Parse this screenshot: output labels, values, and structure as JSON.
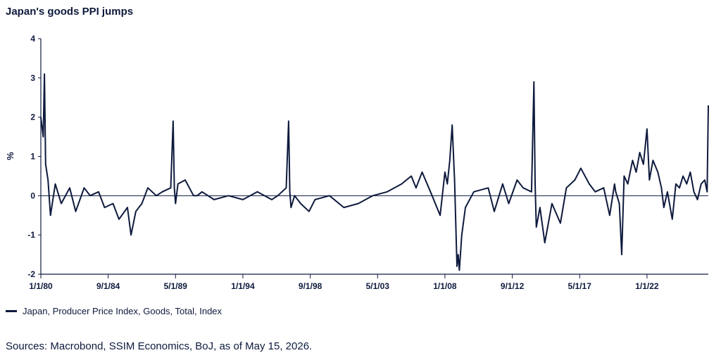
{
  "title": "Japan's goods PPI jumps",
  "legend_label": "Japan, Producer Price Index, Goods, Total, Index",
  "source": "Sources: Macrobond, SSIM Economics, BoJ, as of May 15, 2026.",
  "colors": {
    "line": "#0e1a3d",
    "axis": "#0e1a3d"
  },
  "chart_data": {
    "type": "line",
    "title": "Japan's goods PPI jumps",
    "ylabel": "%",
    "xlabel": "",
    "ylim": [
      -2,
      4
    ],
    "xlim": [
      "1980-01",
      "2026-04"
    ],
    "yticks": [
      "-2",
      "-1",
      "0",
      "1",
      "2",
      "3",
      "4"
    ],
    "xtick_labels": [
      "1/1/80",
      "9/1/84",
      "5/1/89",
      "1/1/94",
      "9/1/98",
      "5/1/03",
      "1/1/08",
      "9/1/12",
      "5/1/17",
      "1/1/22"
    ],
    "xtick_dates": [
      "1980-01",
      "1984-09",
      "1989-05",
      "1994-01",
      "1998-09",
      "2003-05",
      "2008-01",
      "2012-09",
      "2017-05",
      "2022-01"
    ],
    "grid": false,
    "legend_position": "bottom-left",
    "series": [
      {
        "name": "Japan, Producer Price Index, Goods, Total, Index",
        "x": [
          "1980-01",
          "1980-03",
          "1980-04",
          "1980-05",
          "1980-07",
          "1980-09",
          "1981-01",
          "1981-06",
          "1982-01",
          "1982-06",
          "1983-01",
          "1983-06",
          "1984-01",
          "1984-06",
          "1985-01",
          "1985-06",
          "1986-01",
          "1986-04",
          "1986-08",
          "1987-01",
          "1987-06",
          "1988-01",
          "1988-06",
          "1989-01",
          "1989-03",
          "1989-04",
          "1989-05",
          "1989-07",
          "1990-01",
          "1990-08",
          "1990-11",
          "1991-03",
          "1992-01",
          "1993-01",
          "1994-01",
          "1995-01",
          "1996-01",
          "1996-06",
          "1997-01",
          "1997-03",
          "1997-04",
          "1997-05",
          "1997-08",
          "1998-01",
          "1998-08",
          "1999-01",
          "2000-01",
          "2001-01",
          "2002-01",
          "2003-01",
          "2004-01",
          "2005-01",
          "2005-09",
          "2006-01",
          "2006-06",
          "2007-01",
          "2007-09",
          "2008-01",
          "2008-03",
          "2008-05",
          "2008-07",
          "2008-09",
          "2008-11",
          "2008-12",
          "2009-01",
          "2009-03",
          "2009-06",
          "2010-01",
          "2011-01",
          "2011-06",
          "2012-01",
          "2012-06",
          "2013-01",
          "2013-06",
          "2014-01",
          "2014-03",
          "2014-04",
          "2014-05",
          "2014-08",
          "2014-12",
          "2015-06",
          "2016-01",
          "2016-06",
          "2017-01",
          "2017-06",
          "2018-01",
          "2018-06",
          "2019-01",
          "2019-06",
          "2019-10",
          "2019-11",
          "2020-02",
          "2020-04",
          "2020-06",
          "2020-09",
          "2021-01",
          "2021-04",
          "2021-07",
          "2021-10",
          "2022-01",
          "2022-03",
          "2022-06",
          "2022-10",
          "2023-01",
          "2023-03",
          "2023-06",
          "2023-10",
          "2024-01",
          "2024-04",
          "2024-07",
          "2024-10",
          "2025-01",
          "2025-04",
          "2025-07",
          "2025-10",
          "2026-01",
          "2026-03",
          "2026-04"
        ],
        "values": [
          2.0,
          1.5,
          3.1,
          0.8,
          0.4,
          -0.5,
          0.3,
          -0.2,
          0.2,
          -0.4,
          0.2,
          0.0,
          0.1,
          -0.3,
          -0.2,
          -0.6,
          -0.3,
          -1.0,
          -0.4,
          -0.2,
          0.2,
          0.0,
          0.1,
          0.2,
          1.9,
          0.2,
          -0.2,
          0.3,
          0.4,
          0.0,
          0.0,
          0.1,
          -0.1,
          0.0,
          -0.1,
          0.1,
          -0.1,
          0.0,
          0.2,
          1.9,
          0.1,
          -0.3,
          0.0,
          -0.2,
          -0.4,
          -0.1,
          0.0,
          -0.3,
          -0.2,
          0.0,
          0.1,
          0.3,
          0.5,
          0.2,
          0.6,
          0.1,
          -0.5,
          0.6,
          0.3,
          0.9,
          1.8,
          0.4,
          -1.8,
          -1.5,
          -1.9,
          -1.0,
          -0.3,
          0.1,
          0.2,
          -0.4,
          0.3,
          -0.2,
          0.4,
          0.2,
          0.1,
          2.9,
          0.3,
          -0.8,
          -0.3,
          -1.2,
          -0.2,
          -0.7,
          0.2,
          0.4,
          0.7,
          0.3,
          0.1,
          0.2,
          -0.5,
          0.3,
          0.1,
          -0.2,
          -1.5,
          0.5,
          0.3,
          0.9,
          0.6,
          1.1,
          0.8,
          1.7,
          0.4,
          0.9,
          0.6,
          0.2,
          -0.3,
          0.1,
          -0.6,
          0.3,
          0.2,
          0.5,
          0.3,
          0.6,
          0.1,
          -0.1,
          0.3,
          0.4,
          0.1,
          2.3
        ]
      }
    ]
  }
}
